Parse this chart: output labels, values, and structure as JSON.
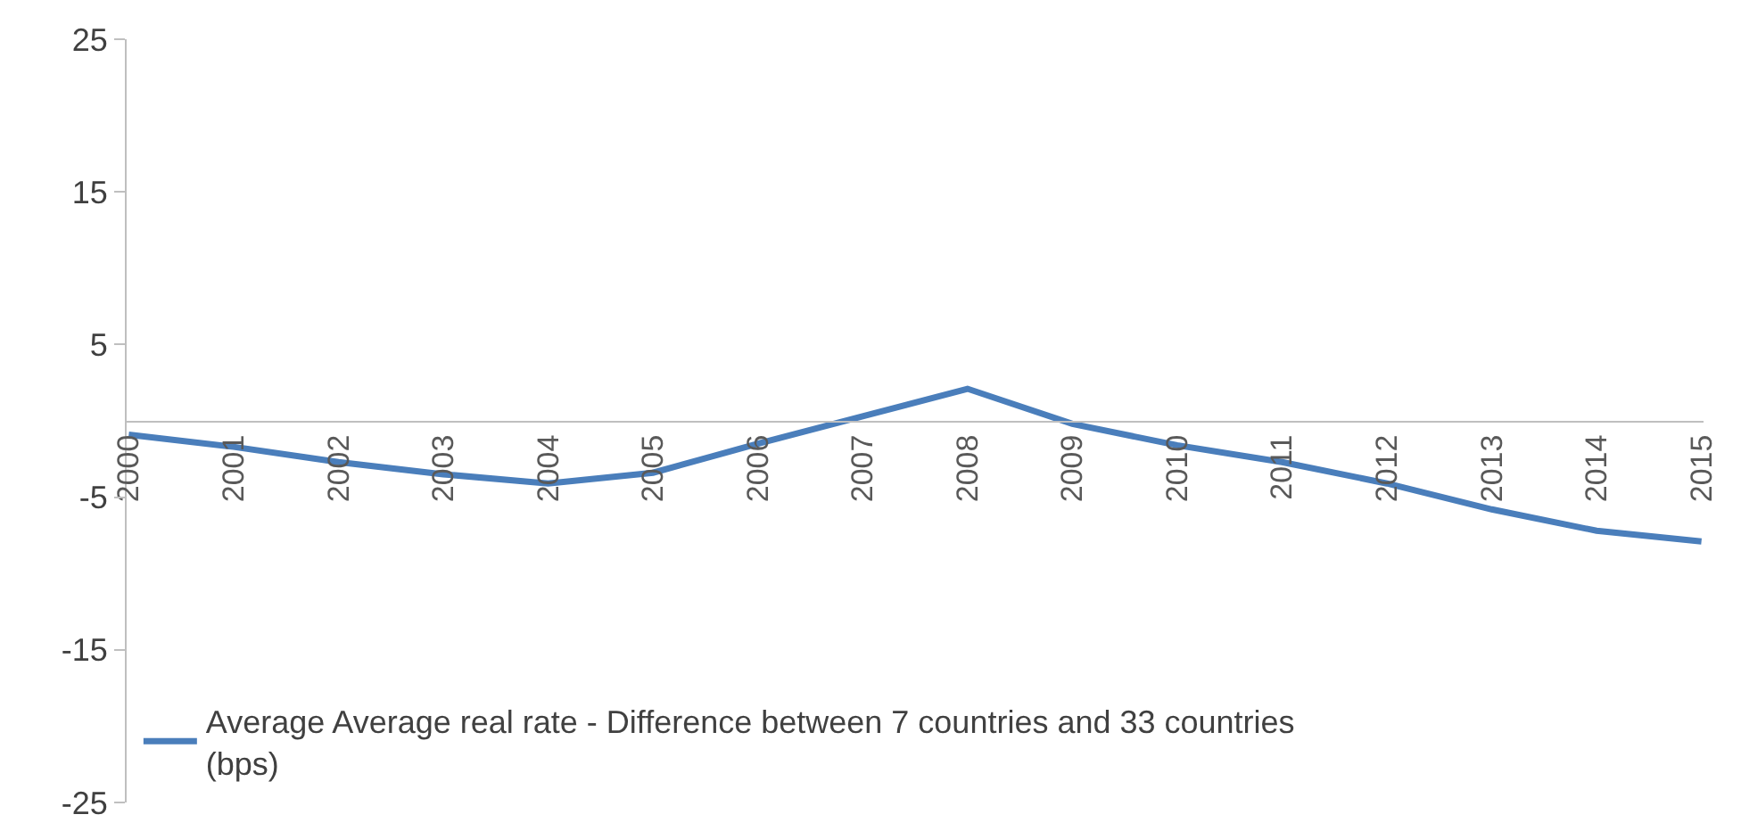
{
  "chart_data": {
    "type": "line",
    "categories": [
      "2000",
      "2001",
      "2002",
      "2003",
      "2004",
      "2005",
      "2006",
      "2007",
      "2008",
      "2009",
      "2010",
      "2011",
      "2012",
      "2013",
      "2014",
      "2015"
    ],
    "series": [
      {
        "name": "Average Average real rate - Difference between 7 countries and 33 countries (bps)",
        "color": "#4a7ebb",
        "values": [
          -0.9,
          -1.7,
          -2.7,
          -3.5,
          -4.1,
          -3.4,
          -1.5,
          0.3,
          2.1,
          -0.2,
          -1.6,
          -2.7,
          -4.1,
          -5.8,
          -7.2,
          -7.9
        ]
      }
    ],
    "ylim": [
      -25,
      25
    ],
    "yticks": [
      -25,
      -15,
      -5,
      5,
      15,
      25
    ],
    "grid": false,
    "legend": "bottom left",
    "marker": "none",
    "line_style": "solid"
  }
}
